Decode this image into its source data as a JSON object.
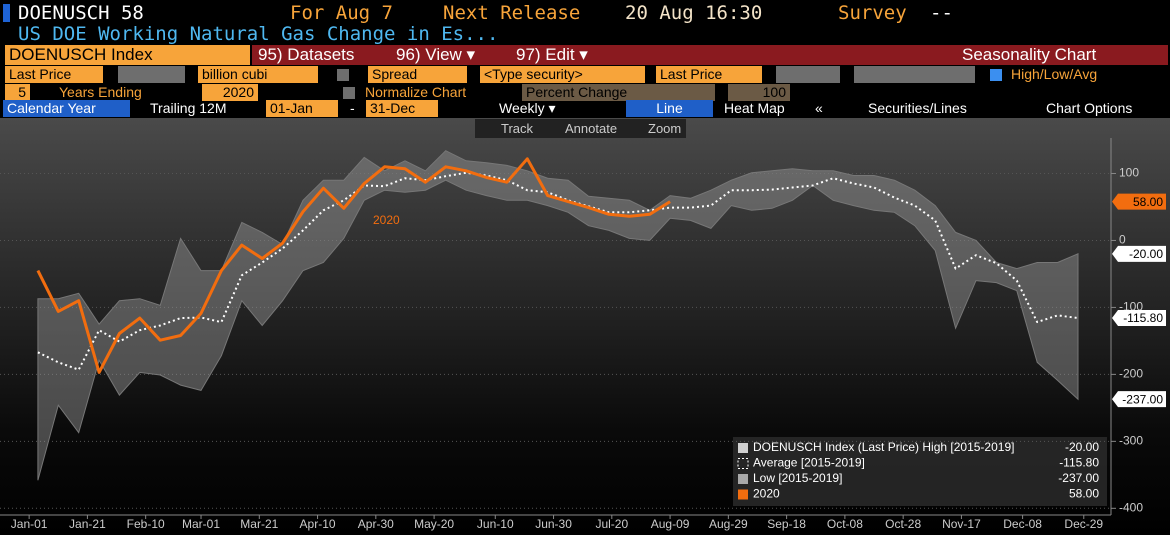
{
  "header": {
    "ticker": "DOENUSCH 58",
    "for": "For Aug 7",
    "next_label": "Next Release",
    "next": "20 Aug 16:30",
    "survey_label": "Survey",
    "survey": "--",
    "description": "US DOE Working Natural Gas Change in Es..."
  },
  "menu": {
    "security": "DOENUSCH Index",
    "items": [
      "95) Datasets",
      "96) View ▾",
      "97) Edit ▾"
    ],
    "title": "Seasonality Chart"
  },
  "row1": {
    "field": "Last Price",
    "unit": "billion cubi",
    "spread": "Spread",
    "security": "<Type security>",
    "field2": "Last Price",
    "hla": "High/Low/Avg"
  },
  "row2": {
    "years": "5",
    "years_ending": "Years Ending",
    "year": "2020",
    "normalize": "Normalize Chart",
    "change": "Percent Change",
    "base": "100"
  },
  "tabs": {
    "calendar": "Calendar Year",
    "trailing": "Trailing 12M",
    "start": "01-Jan",
    "dash": "-",
    "end": "31-Dec",
    "freq": "Weekly ▾",
    "line": "Line",
    "heat": "Heat Map",
    "collapse": "«",
    "securities": "Securities/Lines",
    "options": "Chart Options"
  },
  "tools": [
    "Track",
    "Annotate",
    "Zoom"
  ],
  "chart_data": {
    "type": "line",
    "x": [
      3,
      10,
      17,
      24,
      31,
      38,
      45,
      52,
      59,
      66,
      73,
      80,
      87,
      94,
      101,
      108,
      115,
      122,
      129,
      136,
      143,
      150,
      157,
      164,
      171,
      178,
      185,
      192,
      199,
      206,
      213,
      220,
      227,
      234,
      241,
      248,
      255,
      262,
      269,
      276,
      283,
      290,
      297,
      304,
      311,
      318,
      325,
      332,
      339,
      346,
      353,
      360
    ],
    "xlim": [
      -10,
      371
    ],
    "xticks": [
      {
        "value": 0,
        "label": "Jan-01"
      },
      {
        "value": 20,
        "label": "Jan-21"
      },
      {
        "value": 40,
        "label": "Feb-10"
      },
      {
        "value": 59,
        "label": "Mar-01"
      },
      {
        "value": 79,
        "label": "Mar-21"
      },
      {
        "value": 99,
        "label": "Apr-10"
      },
      {
        "value": 119,
        "label": "Apr-30"
      },
      {
        "value": 139,
        "label": "May-20"
      },
      {
        "value": 160,
        "label": "Jun-10"
      },
      {
        "value": 180,
        "label": "Jun-30"
      },
      {
        "value": 200,
        "label": "Jul-20"
      },
      {
        "value": 220,
        "label": "Aug-09"
      },
      {
        "value": 240,
        "label": "Aug-29"
      },
      {
        "value": 260,
        "label": "Sep-18"
      },
      {
        "value": 280,
        "label": "Oct-08"
      },
      {
        "value": 300,
        "label": "Oct-28"
      },
      {
        "value": 320,
        "label": "Nov-17"
      },
      {
        "value": 341,
        "label": "Dec-08"
      },
      {
        "value": 362,
        "label": "Dec-29"
      }
    ],
    "ylim": [
      -410,
      150
    ],
    "yticks": [
      100,
      0,
      -100,
      -200,
      -300,
      -400
    ],
    "grid": true,
    "series": [
      {
        "name": "DOENUSCH Index (Last Price) High [2015-2019]",
        "color": "#d0d0d0",
        "style": "band-high",
        "values": [
          -87,
          -87,
          -79,
          -125,
          -90,
          -87,
          -97,
          3,
          -45,
          -45,
          27,
          12,
          -6,
          60,
          90,
          90,
          124,
          104,
          119,
          104,
          134,
          119,
          116,
          112,
          104,
          93,
          90,
          66,
          63,
          60,
          45,
          67,
          63,
          75,
          90,
          101,
          104,
          107,
          104,
          104,
          97,
          97,
          90,
          75,
          52,
          12,
          0,
          -33,
          -42,
          -33,
          -33,
          -20
        ],
        "value_labels": [
          null,
          null,
          null,
          null,
          null,
          null,
          null,
          null,
          null,
          null,
          null,
          null,
          null,
          null,
          null,
          null,
          null,
          null,
          null,
          null,
          null,
          null,
          null,
          null,
          null,
          null,
          null,
          null,
          null,
          null,
          null,
          null,
          null,
          null,
          null,
          null,
          null,
          null,
          null,
          null,
          null,
          null,
          null,
          null,
          null,
          null,
          null,
          null,
          null,
          null,
          null,
          "-20.00"
        ]
      },
      {
        "name": "Average [2015-2019]",
        "color": "#ffffff",
        "style": "dotted",
        "values": [
          -167,
          -182,
          -193,
          -134,
          -151,
          -134,
          -127,
          -116,
          -115,
          -122,
          -52,
          -33,
          -12,
          15,
          45,
          60,
          82,
          81,
          93,
          90,
          96,
          101,
          97,
          90,
          75,
          72,
          60,
          51,
          42,
          42,
          45,
          49,
          49,
          52,
          75,
          75,
          76,
          79,
          82,
          93,
          85,
          79,
          64,
          52,
          30,
          -42,
          -22,
          -34,
          -60,
          -122,
          -112,
          -115.8
        ],
        "value_labels": [
          null,
          null,
          null,
          null,
          null,
          null,
          null,
          null,
          null,
          null,
          null,
          null,
          null,
          null,
          null,
          null,
          null,
          null,
          null,
          null,
          null,
          null,
          null,
          null,
          null,
          null,
          null,
          null,
          null,
          null,
          null,
          null,
          null,
          null,
          null,
          null,
          null,
          null,
          null,
          null,
          null,
          null,
          null,
          null,
          null,
          null,
          null,
          null,
          null,
          null,
          null,
          "-115.80"
        ]
      },
      {
        "name": "Low [2015-2019]",
        "color": "#a8a8a8",
        "style": "band-low",
        "values": [
          -358,
          -246,
          -287,
          -179,
          -231,
          -197,
          -201,
          -216,
          -224,
          -172,
          -90,
          -127,
          -90,
          -45,
          -33,
          3,
          60,
          75,
          72,
          75,
          90,
          75,
          67,
          60,
          60,
          52,
          42,
          22,
          15,
          3,
          0,
          33,
          30,
          18,
          52,
          45,
          48,
          60,
          82,
          60,
          52,
          45,
          42,
          22,
          -15,
          -131,
          -60,
          -63,
          -75,
          -182,
          -209,
          -237
        ],
        "value_labels": [
          null,
          null,
          null,
          null,
          null,
          null,
          null,
          null,
          null,
          null,
          null,
          null,
          null,
          null,
          null,
          null,
          null,
          null,
          null,
          null,
          null,
          null,
          null,
          null,
          null,
          null,
          null,
          null,
          null,
          null,
          null,
          null,
          null,
          null,
          null,
          null,
          null,
          null,
          null,
          null,
          null,
          null,
          null,
          null,
          null,
          null,
          null,
          null,
          null,
          null,
          null,
          "-237.00"
        ]
      },
      {
        "name": "2020",
        "color": "#f26d0f",
        "style": "solid",
        "values": [
          -45,
          -106,
          -90,
          -197,
          -139,
          -116,
          -149,
          -142,
          -109,
          -45,
          -7,
          -27,
          -4,
          43,
          78,
          48,
          85,
          110,
          107,
          87,
          110,
          104,
          94,
          87,
          122,
          67,
          58,
          49,
          39,
          36,
          39,
          58,
          null,
          null,
          null,
          null,
          null,
          null,
          null,
          null,
          null,
          null,
          null,
          null,
          null,
          null,
          null,
          null,
          null,
          null,
          null,
          null
        ],
        "value_labels": [
          null,
          null,
          null,
          null,
          null,
          null,
          null,
          null,
          null,
          null,
          null,
          null,
          null,
          null,
          null,
          null,
          null,
          null,
          null,
          null,
          null,
          null,
          null,
          null,
          null,
          null,
          null,
          null,
          null,
          null,
          null,
          "58.00",
          null,
          null,
          null,
          null,
          null,
          null,
          null,
          null,
          null,
          null,
          null,
          null,
          null,
          null,
          null,
          null,
          null,
          null,
          null,
          null
        ]
      }
    ],
    "annotations": [
      "2020"
    ]
  }
}
